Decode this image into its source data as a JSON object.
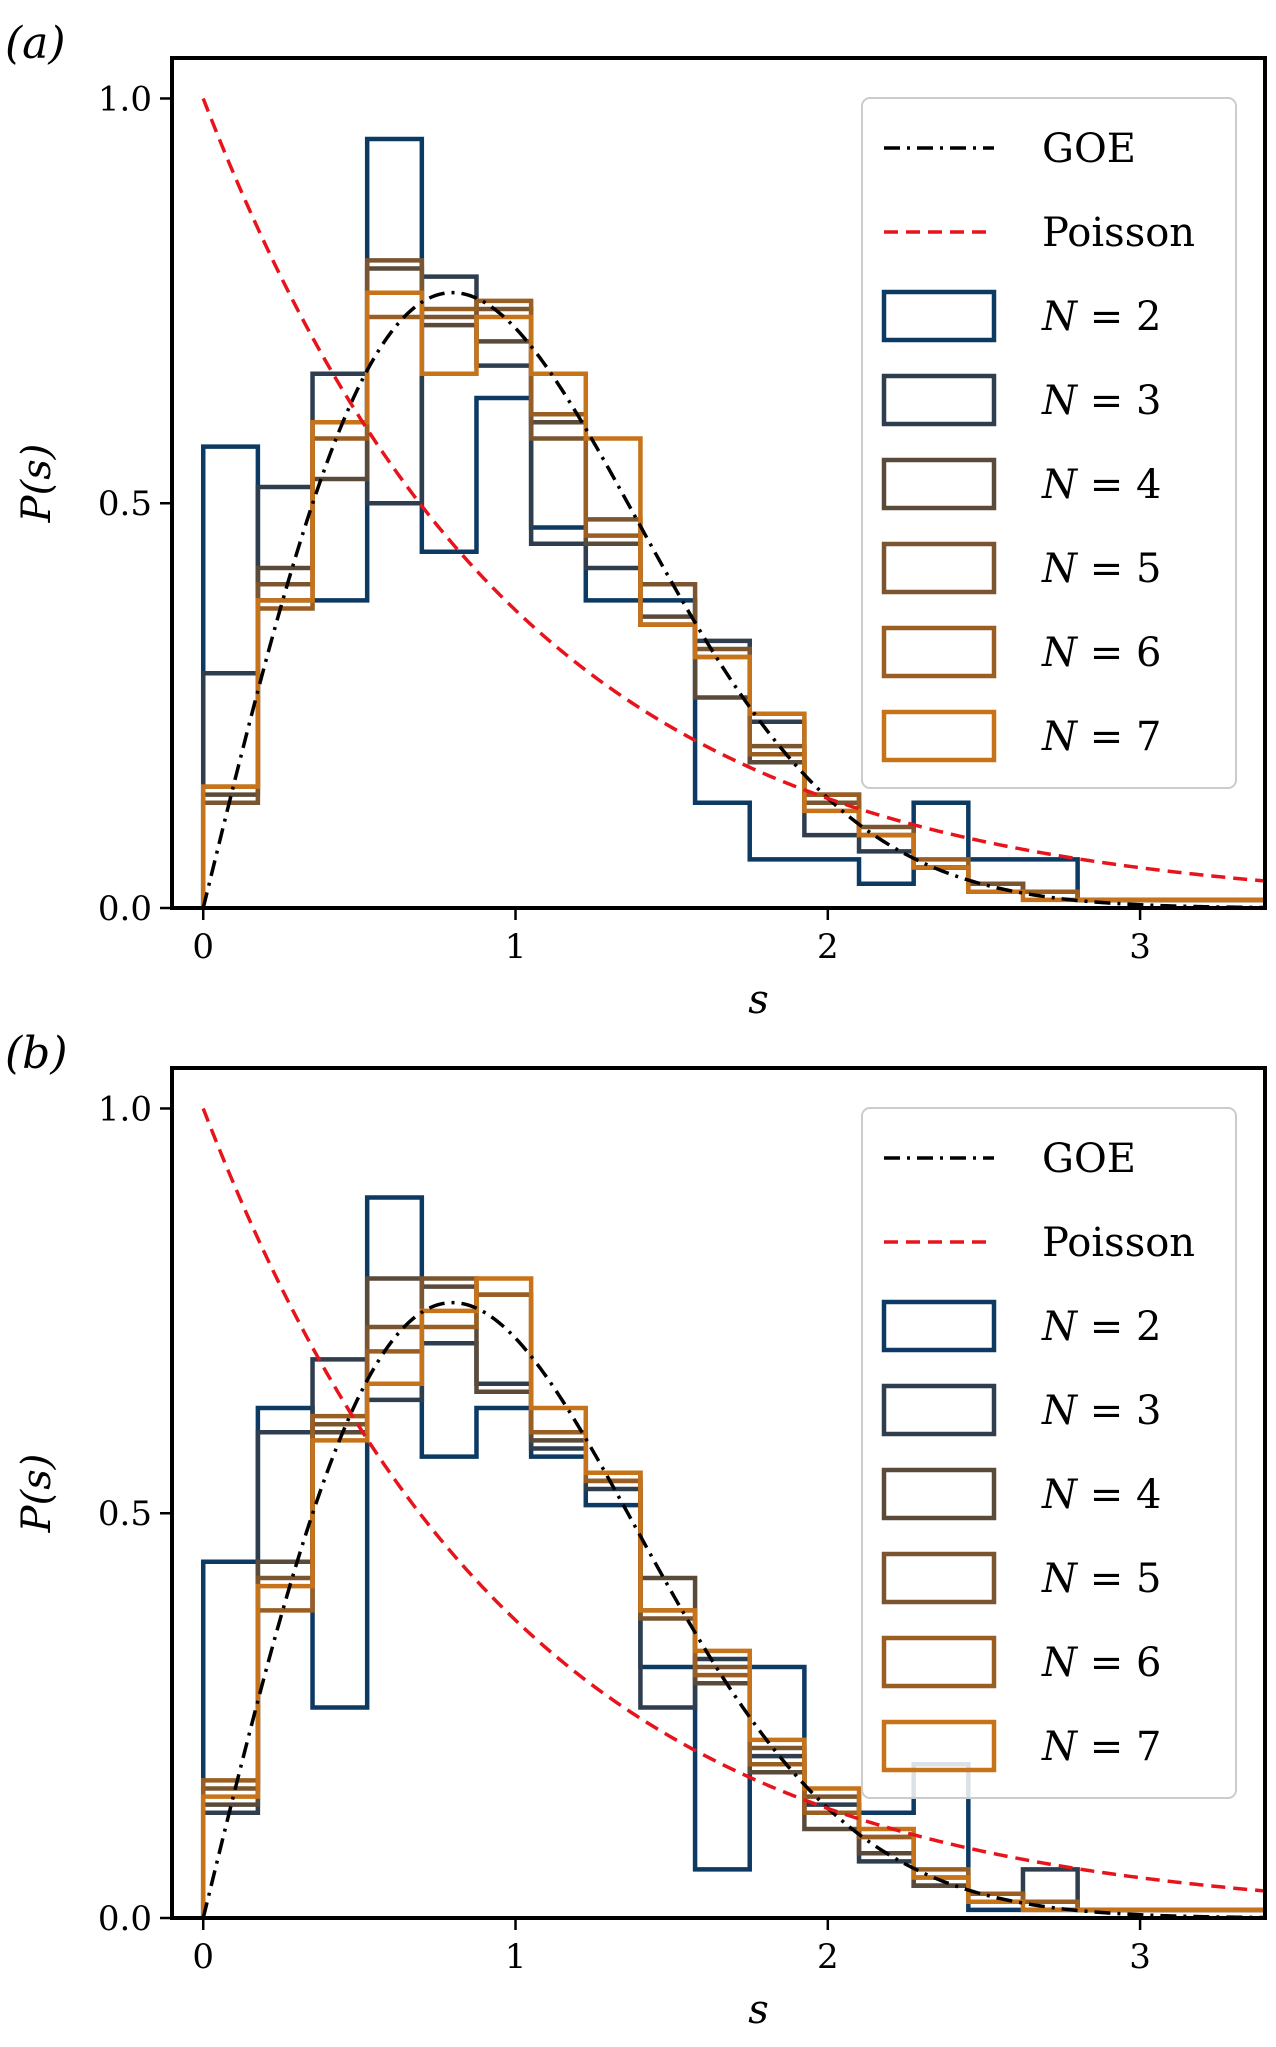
{
  "figure": {
    "series_colors": [
      "#0d3a62",
      "#2f3e4f",
      "#5a4a3a",
      "#7a552f",
      "#9a5e22",
      "#c7731a"
    ],
    "goe_color": "#000000",
    "poisson_color": "#e8141c"
  },
  "chart_data": [
    {
      "type": "histogram-step",
      "panel_label": "(a)",
      "xlabel": "s",
      "ylabel": "P(s)",
      "xlim": [
        -0.1,
        3.4
      ],
      "ylim": [
        0,
        1.05
      ],
      "xticks": [
        0,
        1,
        2,
        3
      ],
      "xtick_labels": [
        "0",
        "1",
        "2",
        "3"
      ],
      "yticks": [
        0,
        0.5,
        1.0
      ],
      "ytick_labels": [
        "0.0",
        "0.5",
        "1.0"
      ],
      "legend_position": "top-right",
      "bin_width": 0.175,
      "curves": [
        {
          "name": "GOE",
          "style": "dash-dot",
          "formula": "goe"
        },
        {
          "name": "Poisson",
          "style": "dashed",
          "formula": "poisson"
        }
      ],
      "series": [
        {
          "name": "N = 2",
          "label_prefix": "N",
          "label_value": "2",
          "values": [
            0.57,
            0.38,
            0.38,
            0.95,
            0.44,
            0.63,
            0.47,
            0.38,
            0.38,
            0.13,
            0.06,
            0.06,
            0.03,
            0.13,
            0.06,
            0.06,
            0.01,
            0.01,
            0.01,
            0.01
          ]
        },
        {
          "name": "N = 3",
          "label_prefix": "N",
          "label_value": "3",
          "values": [
            0.29,
            0.52,
            0.66,
            0.5,
            0.78,
            0.67,
            0.45,
            0.42,
            0.35,
            0.33,
            0.23,
            0.09,
            0.07,
            0.05,
            0.03,
            0.02,
            0.01,
            0.01,
            0.01,
            0.01
          ]
        },
        {
          "name": "N = 4",
          "label_prefix": "N",
          "label_value": "4",
          "values": [
            0.14,
            0.42,
            0.53,
            0.79,
            0.72,
            0.7,
            0.6,
            0.45,
            0.36,
            0.26,
            0.18,
            0.14,
            0.09,
            0.05,
            0.03,
            0.02,
            0.01,
            0.01,
            0.01,
            0.01
          ]
        },
        {
          "name": "N = 5",
          "label_prefix": "N",
          "label_value": "5",
          "values": [
            0.13,
            0.4,
            0.6,
            0.8,
            0.73,
            0.74,
            0.58,
            0.48,
            0.4,
            0.32,
            0.2,
            0.13,
            0.1,
            0.05,
            0.03,
            0.02,
            0.01,
            0.01,
            0.01,
            0.01
          ]
        },
        {
          "name": "N = 6",
          "label_prefix": "N",
          "label_value": "6",
          "values": [
            0.15,
            0.37,
            0.58,
            0.73,
            0.74,
            0.75,
            0.61,
            0.46,
            0.35,
            0.31,
            0.19,
            0.14,
            0.09,
            0.06,
            0.02,
            0.02,
            0.01,
            0.01,
            0.01,
            0.01
          ]
        },
        {
          "name": "N = 7",
          "label_prefix": "N",
          "label_value": "7",
          "values": [
            0.15,
            0.38,
            0.6,
            0.76,
            0.66,
            0.73,
            0.66,
            0.58,
            0.35,
            0.31,
            0.24,
            0.12,
            0.09,
            0.05,
            0.02,
            0.01,
            0.01,
            0.01,
            0.01,
            0.01
          ]
        }
      ]
    },
    {
      "type": "histogram-step",
      "panel_label": "(b)",
      "xlabel": "s",
      "ylabel": "P(s)",
      "xlim": [
        -0.1,
        3.4
      ],
      "ylim": [
        0,
        1.05
      ],
      "xticks": [
        0,
        1,
        2,
        3
      ],
      "xtick_labels": [
        "0",
        "1",
        "2",
        "3"
      ],
      "yticks": [
        0,
        0.5,
        1.0
      ],
      "ytick_labels": [
        "0.0",
        "0.5",
        "1.0"
      ],
      "legend_position": "top-right",
      "bin_width": 0.175,
      "curves": [
        {
          "name": "GOE",
          "style": "dash-dot",
          "formula": "goe"
        },
        {
          "name": "Poisson",
          "style": "dashed",
          "formula": "poisson"
        }
      ],
      "series": [
        {
          "name": "N = 2",
          "label_prefix": "N",
          "label_value": "2",
          "values": [
            0.44,
            0.63,
            0.26,
            0.89,
            0.57,
            0.63,
            0.57,
            0.51,
            0.31,
            0.06,
            0.31,
            0.13,
            0.13,
            0.19,
            0.01,
            0.01,
            0.01,
            0.01,
            0.01,
            0.01
          ]
        },
        {
          "name": "N = 3",
          "label_prefix": "N",
          "label_value": "3",
          "values": [
            0.13,
            0.6,
            0.69,
            0.64,
            0.71,
            0.66,
            0.58,
            0.53,
            0.26,
            0.32,
            0.2,
            0.14,
            0.07,
            0.04,
            0.03,
            0.06,
            0.01,
            0.01,
            0.01,
            0.01
          ]
        },
        {
          "name": "N = 4",
          "label_prefix": "N",
          "label_value": "4",
          "values": [
            0.14,
            0.44,
            0.6,
            0.79,
            0.78,
            0.65,
            0.59,
            0.54,
            0.42,
            0.29,
            0.18,
            0.11,
            0.08,
            0.04,
            0.03,
            0.02,
            0.01,
            0.01,
            0.01,
            0.01
          ]
        },
        {
          "name": "N = 5",
          "label_prefix": "N",
          "label_value": "5",
          "values": [
            0.16,
            0.42,
            0.61,
            0.73,
            0.79,
            0.77,
            0.6,
            0.55,
            0.37,
            0.31,
            0.21,
            0.15,
            0.1,
            0.05,
            0.03,
            0.02,
            0.01,
            0.01,
            0.01,
            0.01
          ]
        },
        {
          "name": "N = 6",
          "label_prefix": "N",
          "label_value": "6",
          "values": [
            0.17,
            0.38,
            0.62,
            0.7,
            0.73,
            0.77,
            0.6,
            0.54,
            0.38,
            0.3,
            0.19,
            0.13,
            0.1,
            0.06,
            0.03,
            0.02,
            0.01,
            0.01,
            0.01,
            0.01
          ]
        },
        {
          "name": "N = 7",
          "label_prefix": "N",
          "label_value": "7",
          "values": [
            0.15,
            0.41,
            0.59,
            0.66,
            0.75,
            0.79,
            0.63,
            0.55,
            0.38,
            0.33,
            0.22,
            0.16,
            0.11,
            0.05,
            0.02,
            0.01,
            0.01,
            0.01,
            0.01,
            0.01
          ]
        }
      ]
    }
  ]
}
